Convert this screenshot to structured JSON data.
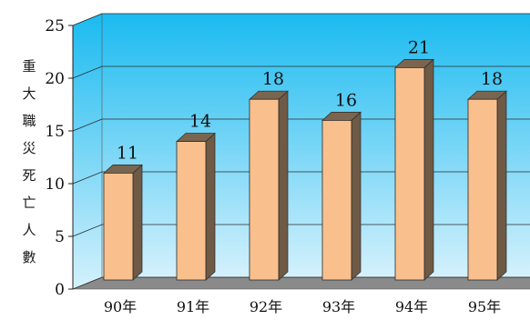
{
  "chart_data": {
    "type": "bar",
    "style": "3d",
    "title": "",
    "xlabel": "",
    "ylabel": "重大職災死亡人數",
    "categories": [
      "90年",
      "91年",
      "92年",
      "93年",
      "94年",
      "95年"
    ],
    "values": [
      11,
      14,
      18,
      16,
      21,
      18
    ],
    "ylim": [
      0,
      25
    ],
    "yticks": [
      0,
      5,
      10,
      15,
      20,
      25
    ],
    "grid": true,
    "legend": "none",
    "colors": {
      "bar_front": "#F9C08E",
      "bar_side": "#6E5A45",
      "bar_top": "#7A6650",
      "wall_top": "#1ABAF0",
      "wall_bottom": "#D4F1FC",
      "floor": "#8A8A8A"
    }
  }
}
